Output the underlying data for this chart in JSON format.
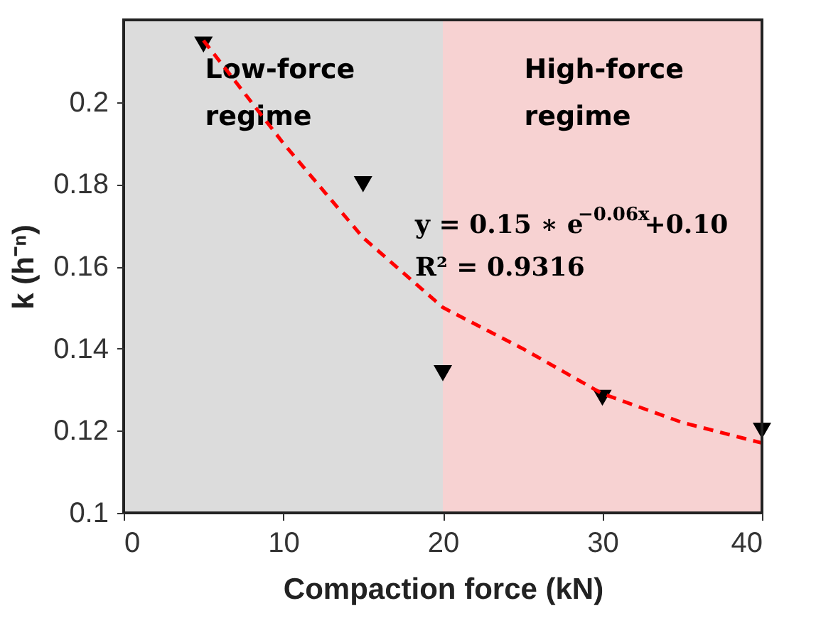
{
  "chart_data": {
    "type": "scatter",
    "xlabel": "Compaction force (kN)",
    "ylabel": "k (h⁻ⁿ)",
    "xlim": [
      0,
      40
    ],
    "xticks": [
      0,
      10,
      20,
      30,
      40
    ],
    "ylim": [
      0.1,
      0.22
    ],
    "yticks": [
      0.1,
      0.12,
      0.14,
      0.16,
      0.18,
      0.2
    ],
    "grid": false,
    "legend": false,
    "series": [
      {
        "color": "#000000",
        "marker": "triangle",
        "x": [
          5,
          15,
          20,
          30,
          40
        ],
        "values": [
          0.214,
          0.18,
          0.134,
          0.128,
          0.12
        ]
      },
      {
        "type": "line",
        "color": "#ff0000",
        "line_style": "dashed",
        "marker": "none",
        "x": [
          5,
          10,
          15,
          20,
          25,
          30,
          35,
          40
        ],
        "values": [
          0.215,
          0.19,
          0.167,
          0.15,
          0.14,
          0.129,
          0.122,
          0.117
        ]
      }
    ],
    "bands": [
      {
        "axis": "x",
        "from": 0,
        "to": 20,
        "label": "Low-force regime",
        "color": "#dcdcdc"
      },
      {
        "axis": "x",
        "from": 20,
        "to": 40,
        "label": "High-force regime",
        "color": "#f7d2d2"
      }
    ],
    "annotations": [
      "y = 0.15 ∗ e$^{−0.06x}$+0.10",
      "R² = 0.9316"
    ]
  }
}
